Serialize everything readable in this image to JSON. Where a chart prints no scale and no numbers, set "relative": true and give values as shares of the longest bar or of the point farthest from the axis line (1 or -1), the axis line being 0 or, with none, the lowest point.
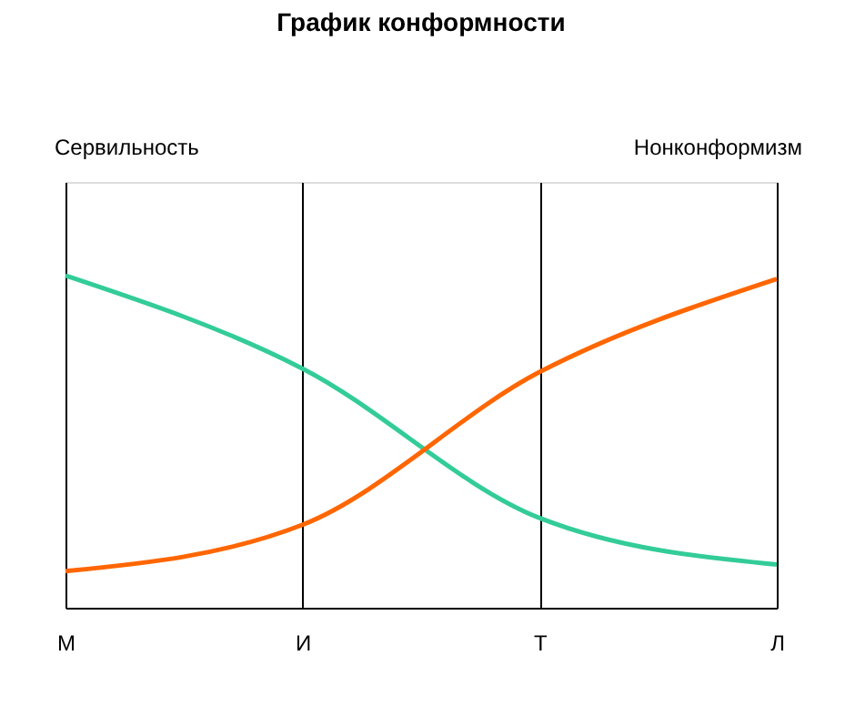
{
  "chart_data": {
    "type": "line",
    "title": "График конформности",
    "annotations": [
      "Сервильность",
      "Нонконформизм"
    ],
    "categories": [
      "М",
      "И",
      "Т",
      "Л"
    ],
    "relative": true,
    "grid": "x",
    "legend": false,
    "marker": "none",
    "line_style": "solid",
    "series": [
      {
        "color": "#33cc99",
        "values": [
          1,
          0.72,
          0.27,
          0.13
        ]
      },
      {
        "color": "#ff6600",
        "values": [
          0.11,
          0.25,
          0.71,
          0.99
        ]
      }
    ]
  }
}
